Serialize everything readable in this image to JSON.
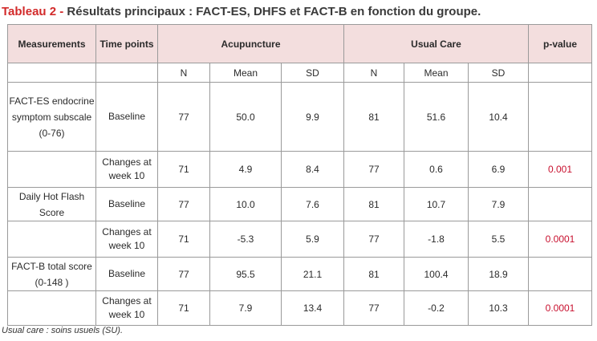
{
  "caption": {
    "lead": "Tableau 2 - ",
    "text": "Résultats principaux : FACT-ES, DHFS et FACT-B en fonction du groupe."
  },
  "table": {
    "headers": {
      "measurements": "Measurements",
      "time_points": "Time points",
      "acupuncture": "Acupuncture",
      "usual_care": "Usual Care",
      "p_value": "p-value"
    },
    "subheaders": [
      "N",
      "Mean",
      "SD",
      "N",
      "Mean",
      "SD"
    ],
    "groups": [
      {
        "measure": "FACT-ES endocrine symptom subscale (0-76)",
        "rows": [
          {
            "time": "Baseline",
            "cells": [
              "77",
              "50.0",
              "9.9",
              "81",
              "51.6",
              "10.4"
            ],
            "p": ""
          },
          {
            "time": "Changes at week 10",
            "cells": [
              "71",
              "4.9",
              "8.4",
              "77",
              "0.6",
              "6.9"
            ],
            "p": "0.001"
          }
        ]
      },
      {
        "measure": "Daily Hot Flash Score",
        "rows": [
          {
            "time": "Baseline",
            "cells": [
              "77",
              "10.0",
              "7.6",
              "81",
              "10.7",
              "7.9"
            ],
            "p": ""
          },
          {
            "time": "Changes at week 10",
            "cells": [
              "71",
              "-5.3",
              "5.9",
              "77",
              "-1.8",
              "5.5"
            ],
            "p": "0.0001"
          }
        ]
      },
      {
        "measure": "FACT-B total score (0-148 )",
        "rows": [
          {
            "time": "Baseline",
            "cells": [
              "77",
              "95.5",
              "21.1",
              "81",
              "100.4",
              "18.9"
            ],
            "p": ""
          },
          {
            "time": "Changes at week 10",
            "cells": [
              "71",
              "7.9",
              "13.4",
              "77",
              "-0.2",
              "10.3"
            ],
            "p": "0.0001"
          }
        ]
      }
    ]
  },
  "footnote": "Usual care : soins usuels (SU).",
  "colors": {
    "caption_lead": "#d22a2a",
    "header_bg": "#f3dede",
    "p_value": "#c8102e"
  }
}
